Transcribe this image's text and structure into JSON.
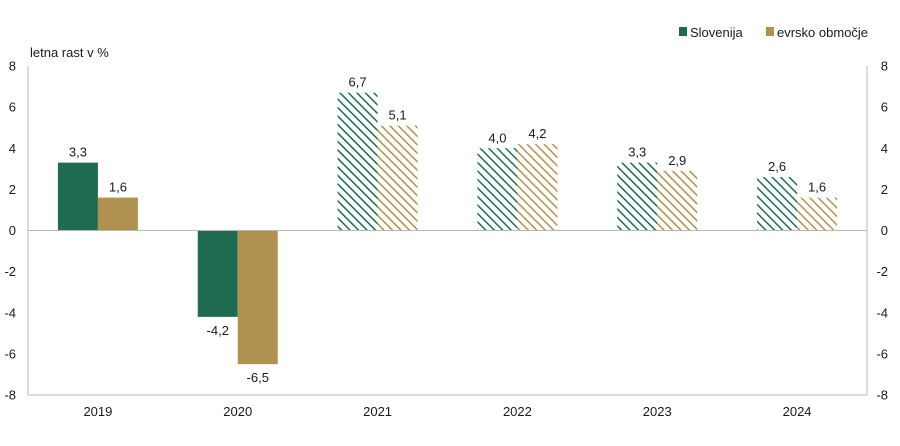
{
  "chart_data": {
    "type": "bar",
    "title": "",
    "xlabel": "",
    "ylabel": "letna rast v %",
    "ylim": [
      -8,
      8
    ],
    "yticks": [
      8,
      6,
      4,
      2,
      0,
      -2,
      -4,
      -6,
      -8
    ],
    "secondary_y_axis": true,
    "grid": false,
    "legend_position": "top-right",
    "categories": [
      "2019",
      "2020",
      "2021",
      "2022",
      "2023",
      "2024"
    ],
    "hatched_categories": [
      "2021",
      "2022",
      "2023",
      "2024"
    ],
    "series": [
      {
        "name": "Slovenija",
        "color": "#1e6b4f",
        "values": [
          3.3,
          -4.2,
          6.7,
          4.0,
          3.3,
          2.6
        ],
        "labels": [
          "3,3",
          "-4,2",
          "6,7",
          "4,0",
          "3,3",
          "2,6"
        ]
      },
      {
        "name": "evrsko območje",
        "color": "#b0914f",
        "values": [
          1.6,
          -6.5,
          5.1,
          4.2,
          2.9,
          1.6
        ],
        "labels": [
          "1,6",
          "-6,5",
          "5,1",
          "4,2",
          "2,9",
          "1,6"
        ]
      }
    ]
  }
}
